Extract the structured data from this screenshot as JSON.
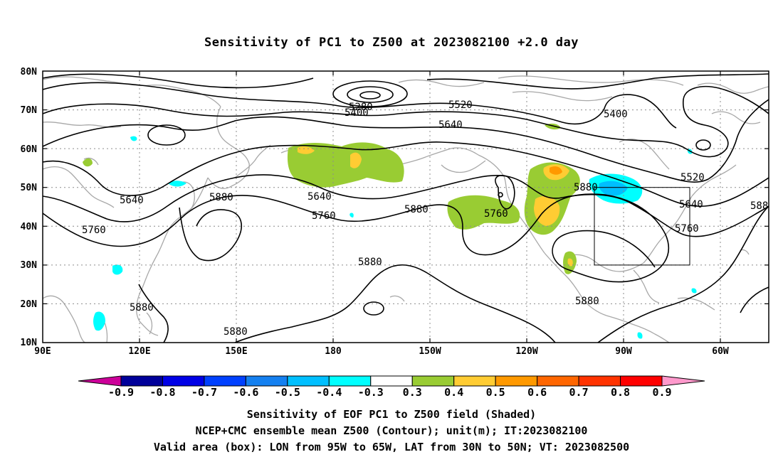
{
  "title": "Sensitivity of PC1 to Z500 at 2023082100 +2.0 day",
  "map": {
    "lat_labels": [
      "80N",
      "70N",
      "60N",
      "50N",
      "40N",
      "30N",
      "20N",
      "10N"
    ],
    "lon_labels": [
      "90E",
      "120E",
      "150E",
      "180",
      "150W",
      "120W",
      "90W",
      "60W"
    ],
    "contour_labels": [
      "5280",
      "5400",
      "5520",
      "5640",
      "5400",
      "5520",
      "5640",
      "5640",
      "5640",
      "5760",
      "5760",
      "5760",
      "5760",
      "5880",
      "5880",
      "5880",
      "5880",
      "5880",
      "5880",
      "5880",
      "588"
    ],
    "box": {
      "lon_from": "95W",
      "lon_to": "65W",
      "lat_from": "30N",
      "lat_to": "50N"
    }
  },
  "colorbar": {
    "labels": [
      "-0.9",
      "-0.8",
      "-0.7",
      "-0.6",
      "-0.5",
      "-0.4",
      "-0.3",
      "0.3",
      "0.4",
      "0.5",
      "0.6",
      "0.7",
      "0.8",
      "0.9"
    ],
    "colors": [
      "#00009a",
      "#0000e6",
      "#0040ff",
      "#1480f0",
      "#00bfff",
      "#00ffff",
      "#ffffff",
      "#99cc33",
      "#ffcc33",
      "#ff9900",
      "#ff6600",
      "#ff3300",
      "#ff0000"
    ],
    "low_arrow_color": "#cc0099",
    "high_arrow_color": "#ff99cc"
  },
  "captions": [
    "Sensitivity of EOF PC1 to Z500 field (Shaded)",
    "NCEP+CMC ensemble mean Z500 (Contour); unit(m); IT:2023082100",
    "Valid area (box): LON from 95W to 65W, LAT from 30N to 50N; VT: 2023082500"
  ]
}
